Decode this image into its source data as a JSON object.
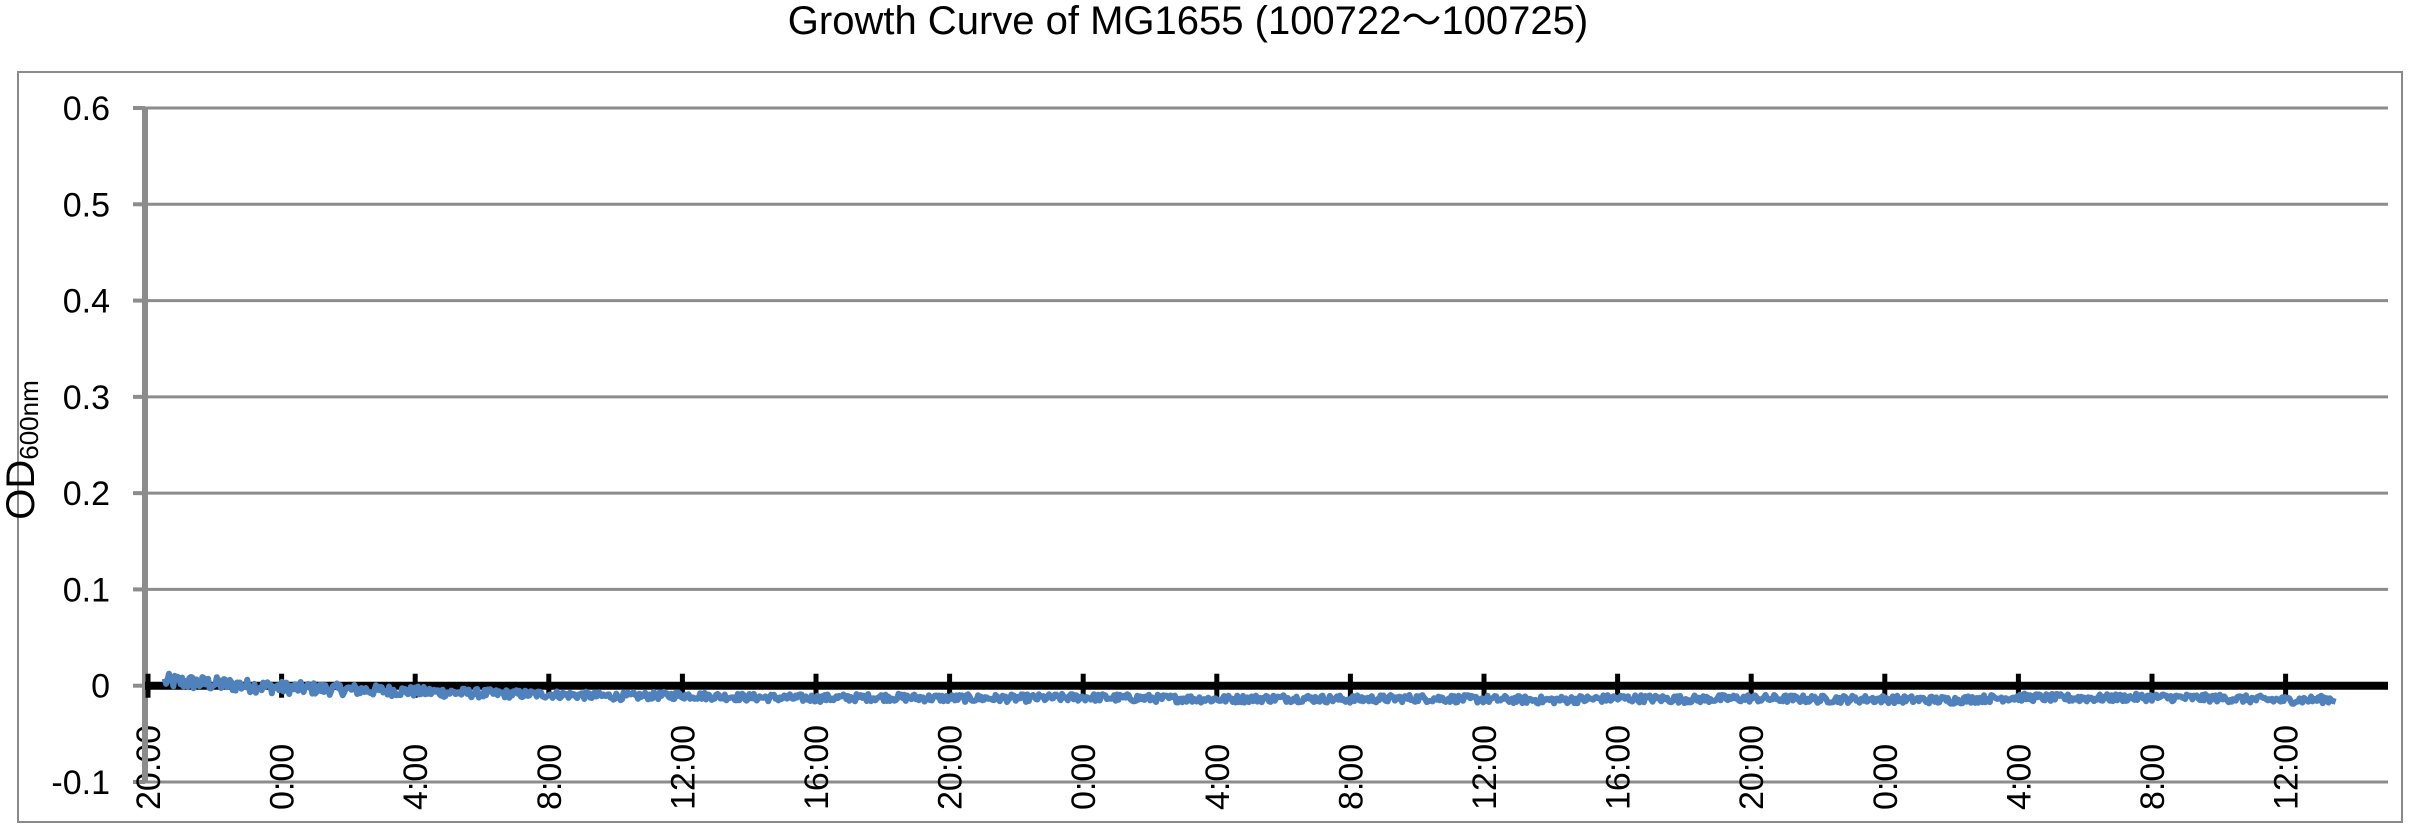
{
  "chart_data": {
    "type": "line",
    "title": "Growth Curve of MG1655 (100722〜100725)",
    "ylabel": "OD",
    "ylabel_subscript": "600nm",
    "xlabel": "",
    "ylim": [
      -0.1,
      0.6
    ],
    "yticks": [
      "0.6",
      "0.5",
      "0.4",
      "0.3",
      "0.2",
      "0.1",
      "0",
      "-0.1"
    ],
    "ytick_values": [
      0.6,
      0.5,
      0.4,
      0.3,
      0.2,
      0.1,
      0,
      -0.1
    ],
    "xticks": [
      "20:00",
      "0:00",
      "4:00",
      "8:00",
      "12:00",
      "16:00",
      "20:00",
      "0:00",
      "4:00",
      "8:00",
      "12:00",
      "16:00",
      "20:00",
      "0:00",
      "4:00",
      "8:00",
      "12:00"
    ],
    "xtick_hours": [
      0,
      4,
      8,
      12,
      16,
      20,
      24,
      28,
      32,
      36,
      40,
      44,
      48,
      52,
      56,
      60,
      64
    ],
    "x_start": "2010-07-22 20:00",
    "x_end": "2010-07-25 13:30",
    "grid": true,
    "legend": "none",
    "series_color": "#4F81BD",
    "series": [
      {
        "x_hours": [
          0.5,
          2,
          4,
          6,
          8,
          10,
          12,
          14,
          16,
          18,
          20,
          22,
          24,
          26,
          28,
          30,
          32,
          34,
          36,
          38,
          40,
          42,
          44,
          46,
          48,
          50,
          52,
          54,
          56,
          58,
          60,
          62,
          64,
          65.5
        ],
        "values": [
          0.005,
          0.002,
          -0.002,
          -0.004,
          -0.006,
          -0.008,
          -0.009,
          -0.011,
          -0.01,
          -0.012,
          -0.013,
          -0.012,
          -0.013,
          -0.013,
          -0.012,
          -0.013,
          -0.014,
          -0.013,
          -0.014,
          -0.013,
          -0.014,
          -0.015,
          -0.013,
          -0.014,
          -0.013,
          -0.014,
          -0.014,
          -0.015,
          -0.012,
          -0.013,
          -0.012,
          -0.013,
          -0.015,
          -0.014
        ]
      }
    ]
  }
}
